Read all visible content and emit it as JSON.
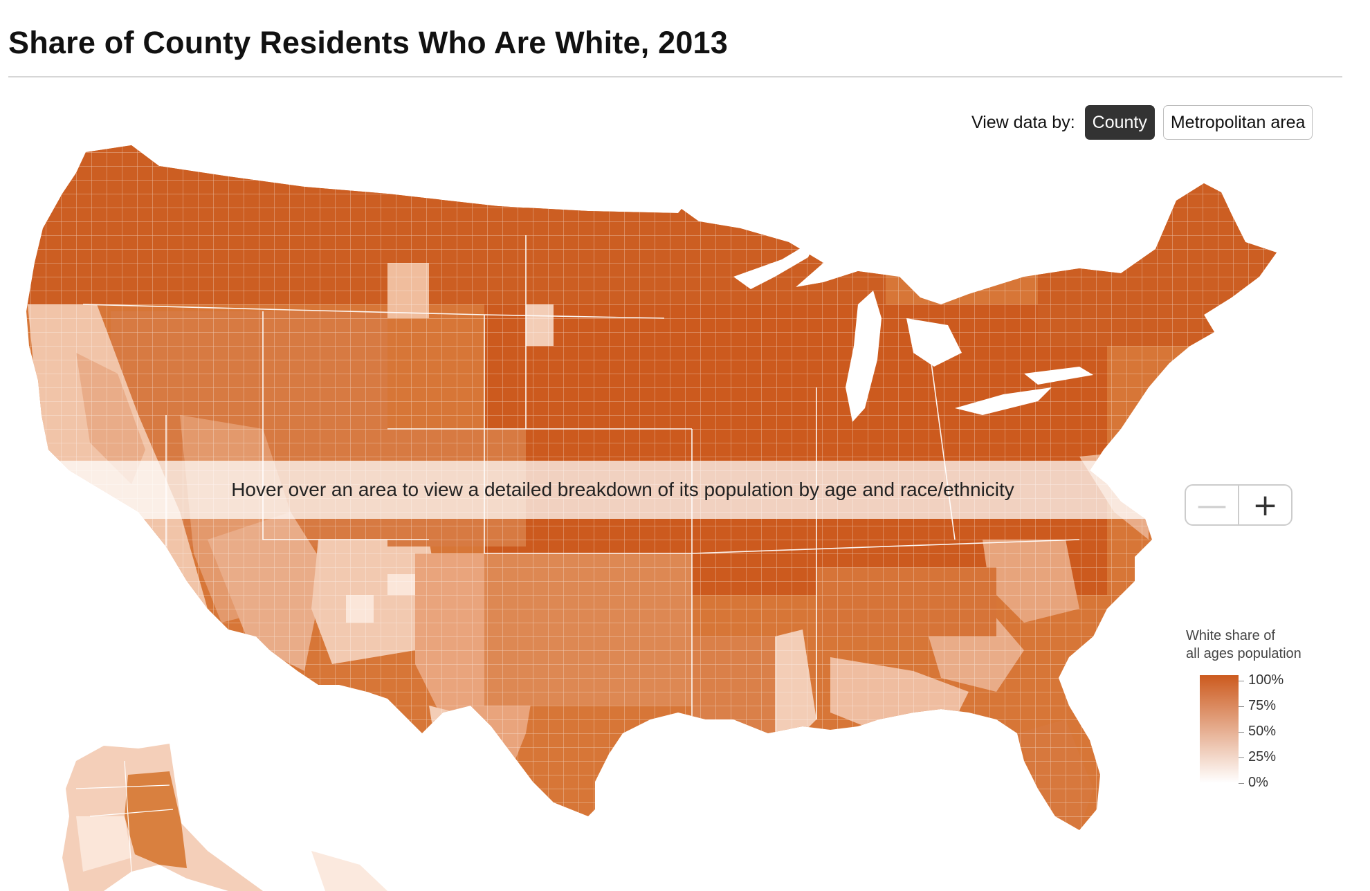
{
  "title": "Share of County Residents Who Are White, 2013",
  "view_by": {
    "label": "View data by:",
    "options": [
      {
        "label": "County",
        "selected": true
      },
      {
        "label": "Metropolitan area",
        "selected": false
      }
    ]
  },
  "hover_hint": "Hover over an area to view a detailed breakdown of its population by age and race/ethnicity",
  "zoom": {
    "minus_icon": "minus-icon",
    "plus_icon": "plus-icon"
  },
  "legend": {
    "title": "White share of\nall ages population",
    "ticks": [
      "100%",
      "75%",
      "50%",
      "25%",
      "0%"
    ],
    "color_high": "#cc5a1e",
    "color_low": "#ffffff"
  },
  "colors": {
    "deep": "#cc5a1e",
    "mid": "#dd8a57",
    "light": "#e9aa86",
    "pale": "#f3cdb6",
    "faint": "#fbe9de",
    "border": "#ffffff"
  }
}
